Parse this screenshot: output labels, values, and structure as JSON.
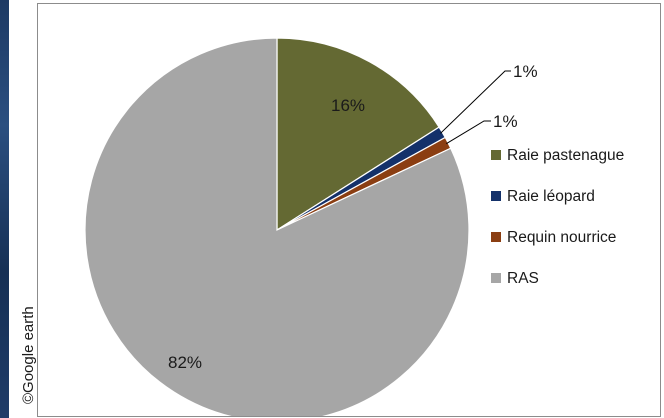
{
  "credit": "©Google earth",
  "colors": {
    "raie_pastenague": "#646933",
    "raie_leopard": "#14316a",
    "requin_nourrice": "#8b3e12",
    "ras": "#a6a6a6"
  },
  "chart_data": {
    "type": "pie",
    "title": "",
    "legend_position": "right",
    "categories": [
      "Raie pastenague",
      "Raie léopard",
      "Requin nourrice",
      "RAS"
    ],
    "values": [
      16,
      1,
      1,
      82
    ],
    "labels": [
      "16%",
      "1%",
      "1%",
      "82%"
    ],
    "start_angle": "12 o'clock",
    "direction": "clockwise"
  }
}
